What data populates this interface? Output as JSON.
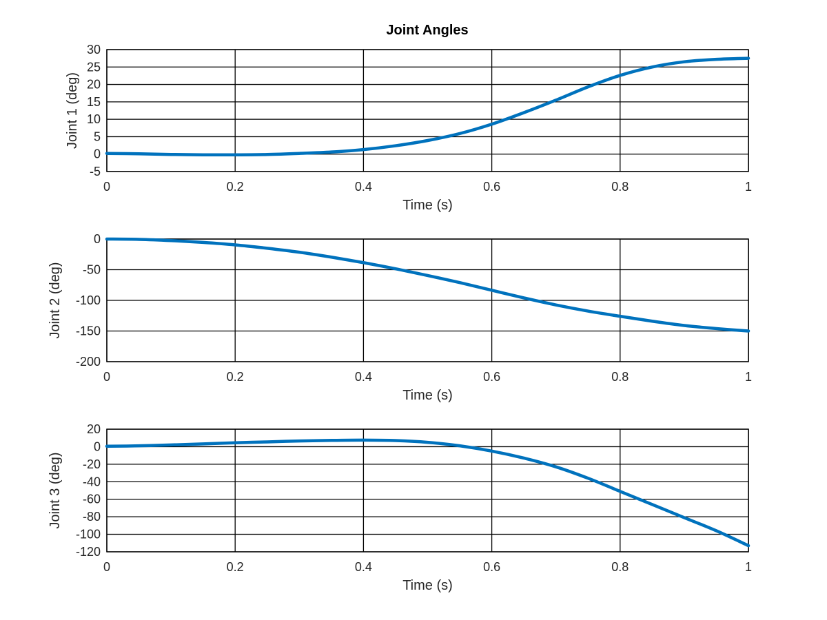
{
  "figure_title": "Joint Angles",
  "chart_data": [
    {
      "type": "line",
      "title": "Joint Angles",
      "xlabel": "Time (s)",
      "ylabel": "Joint 1 (deg)",
      "xlim": [
        0,
        1
      ],
      "ylim": [
        -5,
        30
      ],
      "xticks": [
        "0",
        "0.2",
        "0.4",
        "0.6",
        "0.8",
        "1"
      ],
      "yticks": [
        "30",
        "25",
        "20",
        "15",
        "10",
        "5",
        "0",
        "-5"
      ],
      "grid": true,
      "series": [
        {
          "x": [
            0,
            0.05,
            0.1,
            0.15,
            0.2,
            0.25,
            0.3,
            0.35,
            0.4,
            0.45,
            0.5,
            0.55,
            0.6,
            0.65,
            0.7,
            0.75,
            0.8,
            0.85,
            0.9,
            0.95,
            1
          ],
          "values": [
            0.2,
            0.1,
            -0.1,
            -0.2,
            -0.2,
            -0.1,
            0.2,
            0.6,
            1.3,
            2.4,
            3.9,
            5.9,
            8.6,
            11.9,
            15.5,
            19.3,
            22.6,
            25.0,
            26.5,
            27.2,
            27.5
          ]
        }
      ],
      "line_color": "#0072BD"
    },
    {
      "type": "line",
      "title": "",
      "xlabel": "Time (s)",
      "ylabel": "Joint 2 (deg)",
      "xlim": [
        0,
        1
      ],
      "ylim": [
        -200,
        0
      ],
      "xticks": [
        "0",
        "0.2",
        "0.4",
        "0.6",
        "0.8",
        "1"
      ],
      "yticks": [
        "0",
        "-50",
        "-100",
        "-150",
        "-200"
      ],
      "grid": true,
      "series": [
        {
          "x": [
            0,
            0.05,
            0.1,
            0.15,
            0.2,
            0.25,
            0.3,
            0.35,
            0.4,
            0.45,
            0.5,
            0.55,
            0.6,
            0.65,
            0.7,
            0.75,
            0.8,
            0.85,
            0.9,
            0.95,
            1
          ],
          "values": [
            0,
            -0.5,
            -2.5,
            -5.5,
            -9.5,
            -15,
            -21.5,
            -29.5,
            -38.5,
            -48.5,
            -59.5,
            -71,
            -83.5,
            -96,
            -107.5,
            -117.5,
            -126,
            -134,
            -141,
            -146,
            -150
          ]
        }
      ],
      "line_color": "#0072BD"
    },
    {
      "type": "line",
      "title": "",
      "xlabel": "Time (s)",
      "ylabel": "Joint 3 (deg)",
      "xlim": [
        0,
        1
      ],
      "ylim": [
        -120,
        20
      ],
      "xticks": [
        "0",
        "0.2",
        "0.4",
        "0.6",
        "0.8",
        "1"
      ],
      "yticks": [
        "20",
        "0",
        "-20",
        "-40",
        "-60",
        "-80",
        "-100",
        "-120"
      ],
      "grid": true,
      "series": [
        {
          "x": [
            0,
            0.05,
            0.1,
            0.15,
            0.2,
            0.25,
            0.3,
            0.35,
            0.4,
            0.45,
            0.5,
            0.55,
            0.6,
            0.65,
            0.7,
            0.75,
            0.8,
            0.85,
            0.9,
            0.95,
            1
          ],
          "values": [
            0.5,
            1.0,
            2.0,
            3.2,
            4.5,
            5.5,
            6.5,
            7.2,
            7.5,
            7.0,
            5.0,
            1.0,
            -5.0,
            -13.0,
            -23.0,
            -36.0,
            -51.0,
            -66.0,
            -81.0,
            -96.0,
            -113.0
          ]
        }
      ],
      "line_color": "#0072BD"
    }
  ]
}
